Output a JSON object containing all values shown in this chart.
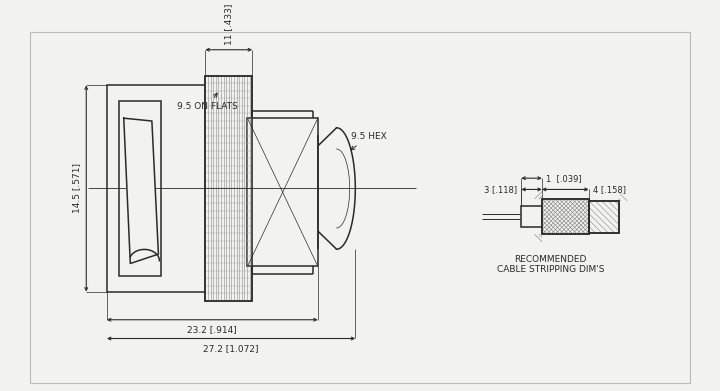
{
  "bg_color": "#f2f2ee",
  "line_color": "#2a2a2a",
  "dim_color": "#2a2a2a",
  "border_color": "#bbbbbb",
  "dims": {
    "height_label": "14.5 [.571]",
    "width1_label": "23.2 [.914]",
    "width2_label": "27.2 [1.072]",
    "knurl_label": "9.5 ON FLATS",
    "hex_label": "9.5 HEX",
    "top_label": "11 [.433]"
  },
  "strip_dims": {
    "d1_label": "1  [.039]",
    "d2_label": "3 [.118]",
    "d3_label": "4 [.158]"
  },
  "rec_label_line1": "RECOMMENDED",
  "rec_label_line2": "CABLE STRIPPING DIM'S"
}
